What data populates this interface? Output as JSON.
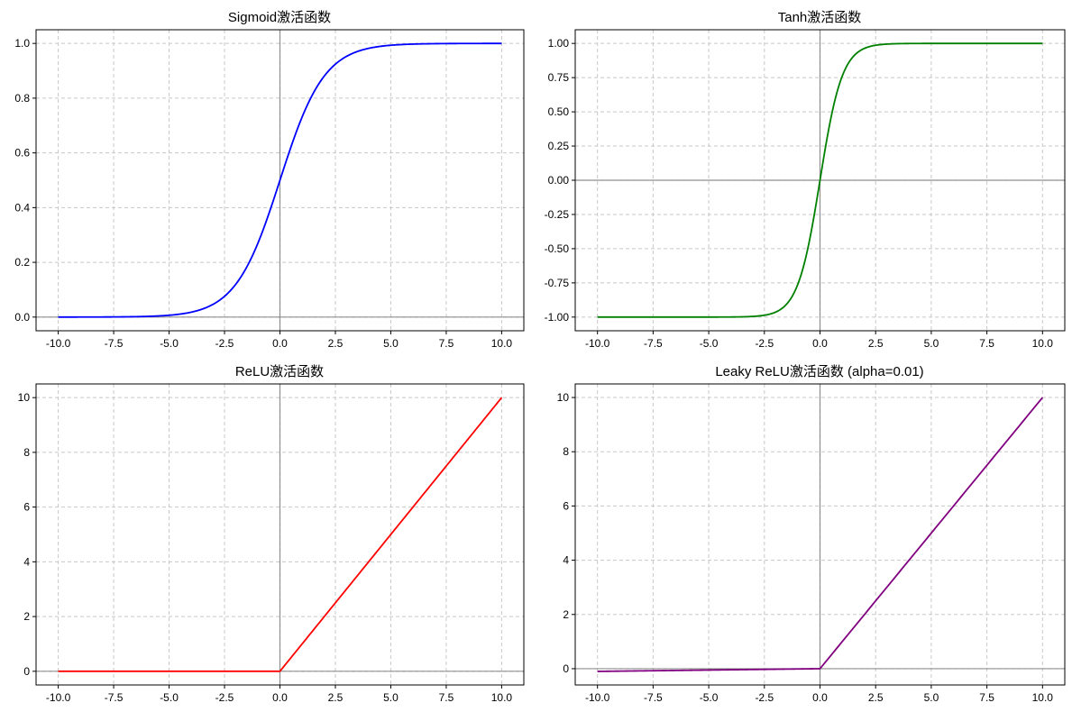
{
  "chart_data": [
    {
      "type": "line",
      "title": "Sigmoid激活函数",
      "function": "sigmoid",
      "color": "#0000ff",
      "xlim": [
        -11,
        11
      ],
      "ylim": [
        -0.05,
        1.05
      ],
      "x_ticks": [
        -10,
        -7.5,
        -5,
        -2.5,
        0,
        2.5,
        5,
        7.5,
        10
      ],
      "x_tick_labels": [
        "-10.0",
        "-7.5",
        "-5.0",
        "-2.5",
        "0.0",
        "2.5",
        "5.0",
        "7.5",
        "10.0"
      ],
      "y_ticks": [
        0,
        0.2,
        0.4,
        0.6,
        0.8,
        1.0
      ],
      "y_tick_labels": [
        "0.0",
        "0.2",
        "0.4",
        "0.6",
        "0.8",
        "1.0"
      ],
      "x_range": [
        -10,
        10
      ],
      "grid": true,
      "zero_lines": true
    },
    {
      "type": "line",
      "title": "Tanh激活函数",
      "function": "tanh",
      "color": "#008000",
      "xlim": [
        -11,
        11
      ],
      "ylim": [
        -1.1,
        1.1
      ],
      "x_ticks": [
        -10,
        -7.5,
        -5,
        -2.5,
        0,
        2.5,
        5,
        7.5,
        10
      ],
      "x_tick_labels": [
        "-10.0",
        "-7.5",
        "-5.0",
        "-2.5",
        "0.0",
        "2.5",
        "5.0",
        "7.5",
        "10.0"
      ],
      "y_ticks": [
        -1,
        -0.75,
        -0.5,
        -0.25,
        0,
        0.25,
        0.5,
        0.75,
        1.0
      ],
      "y_tick_labels": [
        "-1.00",
        "-0.75",
        "-0.50",
        "-0.25",
        "0.00",
        "0.25",
        "0.50",
        "0.75",
        "1.00"
      ],
      "x_range": [
        -10,
        10
      ],
      "grid": true,
      "zero_lines": true
    },
    {
      "type": "line",
      "title": "ReLU激活函数",
      "function": "relu",
      "color": "#ff0000",
      "xlim": [
        -11,
        11
      ],
      "ylim": [
        -0.5,
        10.5
      ],
      "x_ticks": [
        -10,
        -7.5,
        -5,
        -2.5,
        0,
        2.5,
        5,
        7.5,
        10
      ],
      "x_tick_labels": [
        "-10.0",
        "-7.5",
        "-5.0",
        "-2.5",
        "0.0",
        "2.5",
        "5.0",
        "7.5",
        "10.0"
      ],
      "y_ticks": [
        0,
        2,
        4,
        6,
        8,
        10
      ],
      "y_tick_labels": [
        "0",
        "2",
        "4",
        "6",
        "8",
        "10"
      ],
      "x_range": [
        -10,
        10
      ],
      "grid": true,
      "zero_lines": true
    },
    {
      "type": "line",
      "title": "Leaky ReLU激活函数 (alpha=0.01)",
      "function": "leaky_relu",
      "alpha": 0.01,
      "color": "#800080",
      "xlim": [
        -11,
        11
      ],
      "ylim": [
        -0.6,
        10.5
      ],
      "x_ticks": [
        -10,
        -7.5,
        -5,
        -2.5,
        0,
        2.5,
        5,
        7.5,
        10
      ],
      "x_tick_labels": [
        "-10.0",
        "-7.5",
        "-5.0",
        "-2.5",
        "0.0",
        "2.5",
        "5.0",
        "7.5",
        "10.0"
      ],
      "y_ticks": [
        0,
        2,
        4,
        6,
        8,
        10
      ],
      "y_tick_labels": [
        "0",
        "2",
        "4",
        "6",
        "8",
        "10"
      ],
      "x_range": [
        -10,
        10
      ],
      "grid": true,
      "zero_lines": true
    }
  ]
}
